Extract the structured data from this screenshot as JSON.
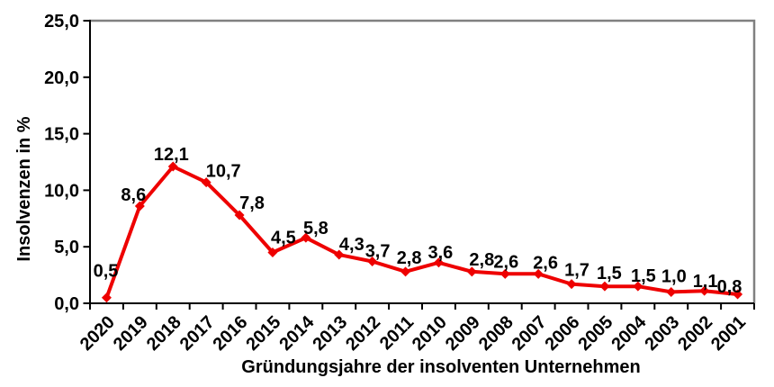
{
  "chart_data": {
    "type": "line",
    "title": "",
    "categories": [
      "2020",
      "2019",
      "2018",
      "2017",
      "2016",
      "2015",
      "2014",
      "2013",
      "2012",
      "2011",
      "2010",
      "2009",
      "2008",
      "2007",
      "2006",
      "2005",
      "2004",
      "2003",
      "2002",
      "2001"
    ],
    "values": [
      0.5,
      8.6,
      12.1,
      10.7,
      7.8,
      4.5,
      5.8,
      4.3,
      3.7,
      2.8,
      3.6,
      2.8,
      2.6,
      2.6,
      1.7,
      1.5,
      1.5,
      1.0,
      1.1,
      0.8
    ],
    "point_labels": [
      "0,5",
      "8,6",
      "12,1",
      "10,7",
      "7,8",
      "4,5",
      "5,8",
      "4,3",
      "3,7",
      "2,8",
      "3,6",
      "2,8",
      "2,6",
      "2,6",
      "1,7",
      "1,5",
      "1,5",
      "1,0",
      "1,1",
      "0,8"
    ],
    "xlabel": "Gründungsjahre der insolventen Unternehmen",
    "ylabel": "Insolvenzen in %",
    "ylim": [
      0,
      25
    ],
    "ytick_step": 5,
    "ytick_labels": [
      "0,0",
      "5,0",
      "10,0",
      "15,0",
      "20,0",
      "25,0"
    ],
    "grid": false,
    "legend": "none",
    "line_color": "#ee0000",
    "marker": "diamond",
    "axis_color": "#000000",
    "plot_border_color": "#808080",
    "text_color": "#000000"
  }
}
